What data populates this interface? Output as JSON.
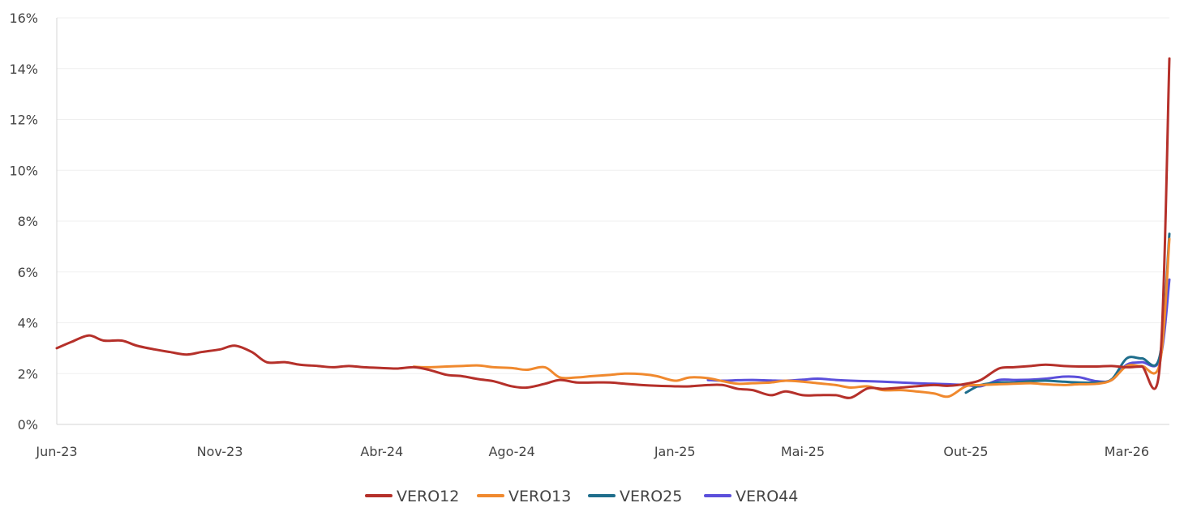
{
  "chart_data": {
    "type": "line",
    "title": "",
    "xlabel": "",
    "ylabel": "",
    "ylim": [
      0,
      16
    ],
    "grid": true,
    "legend_placement": "bottom",
    "y_ticks": [
      "0%",
      "2%",
      "4%",
      "6%",
      "8%",
      "10%",
      "12%",
      "14%",
      "16%"
    ],
    "x_ticks": [
      "Jun-23",
      "Nov-23",
      "Abr-24",
      "Ago-24",
      "Jan-25",
      "Mai-25",
      "Out-25",
      "Mar-26"
    ],
    "series": [
      {
        "name": "VERO44",
        "color": "#5b4fdb",
        "x": [
          "2025-02-01",
          "2025-02-15",
          "2025-03-01",
          "2025-03-15",
          "2025-04-01",
          "2025-04-15",
          "2025-05-01",
          "2025-05-15",
          "2025-06-01",
          "2025-06-15",
          "2025-07-01",
          "2025-07-15",
          "2025-08-01",
          "2025-08-15",
          "2025-09-01",
          "2025-09-15",
          "2025-10-01",
          "2025-10-15",
          "2025-11-01",
          "2025-11-15",
          "2025-12-01",
          "2025-12-15",
          "2026-01-01",
          "2026-01-15",
          "2026-02-01",
          "2026-02-15",
          "2026-03-01",
          "2026-03-15",
          "2026-04-01",
          "2026-04-10"
        ],
        "values": [
          1.75,
          1.72,
          1.74,
          1.75,
          1.73,
          1.72,
          1.76,
          1.8,
          1.75,
          1.72,
          1.7,
          1.68,
          1.65,
          1.62,
          1.6,
          1.58,
          1.55,
          1.5,
          1.75,
          1.75,
          1.76,
          1.8,
          1.88,
          1.86,
          1.7,
          1.75,
          2.35,
          2.45,
          2.55,
          5.7
        ]
      },
      {
        "name": "VERO25",
        "color": "#1f6e8c",
        "x": [
          "2025-10-01",
          "2025-10-15",
          "2025-11-01",
          "2025-11-15",
          "2025-12-01",
          "2025-12-15",
          "2026-01-01",
          "2026-01-15",
          "2026-02-01",
          "2026-02-15",
          "2026-03-01",
          "2026-03-15",
          "2026-04-01",
          "2026-04-10"
        ],
        "values": [
          1.25,
          1.55,
          1.65,
          1.65,
          1.7,
          1.72,
          1.68,
          1.65,
          1.65,
          1.78,
          2.6,
          2.6,
          2.7,
          7.5
        ]
      },
      {
        "name": "VERO13",
        "color": "#f0892e",
        "x": [
          "2024-05-01",
          "2024-05-15",
          "2024-06-01",
          "2024-06-15",
          "2024-07-01",
          "2024-07-15",
          "2024-08-01",
          "2024-08-15",
          "2024-09-01",
          "2024-09-15",
          "2024-10-01",
          "2024-10-15",
          "2024-11-01",
          "2024-11-15",
          "2024-12-01",
          "2024-12-15",
          "2025-01-01",
          "2025-01-15",
          "2025-02-01",
          "2025-02-15",
          "2025-03-01",
          "2025-03-15",
          "2025-04-01",
          "2025-04-15",
          "2025-05-01",
          "2025-05-15",
          "2025-06-01",
          "2025-06-15",
          "2025-07-01",
          "2025-07-15",
          "2025-08-01",
          "2025-08-15",
          "2025-09-01",
          "2025-09-15",
          "2025-10-01",
          "2025-10-15",
          "2025-11-01",
          "2025-11-15",
          "2025-12-01",
          "2025-12-15",
          "2026-01-01",
          "2026-01-15",
          "2026-02-01",
          "2026-02-15",
          "2026-03-01",
          "2026-03-15",
          "2026-04-01",
          "2026-04-10"
        ],
        "values": [
          2.27,
          2.25,
          2.28,
          2.3,
          2.32,
          2.25,
          2.22,
          2.15,
          2.25,
          1.85,
          1.85,
          1.9,
          1.95,
          2.0,
          1.98,
          1.9,
          1.72,
          1.85,
          1.82,
          1.7,
          1.6,
          1.62,
          1.65,
          1.72,
          1.68,
          1.62,
          1.55,
          1.45,
          1.5,
          1.35,
          1.35,
          1.3,
          1.22,
          1.1,
          1.5,
          1.55,
          1.58,
          1.6,
          1.62,
          1.58,
          1.55,
          1.58,
          1.6,
          1.75,
          2.3,
          2.3,
          2.4,
          7.3
        ]
      },
      {
        "name": "VERO12",
        "color": "#b5302a",
        "x": [
          "2023-06-01",
          "2023-06-15",
          "2023-07-01",
          "2023-07-15",
          "2023-08-01",
          "2023-08-15",
          "2023-09-01",
          "2023-09-15",
          "2023-10-01",
          "2023-10-15",
          "2023-11-01",
          "2023-11-15",
          "2023-12-01",
          "2023-12-15",
          "2024-01-01",
          "2024-01-15",
          "2024-02-01",
          "2024-02-15",
          "2024-03-01",
          "2024-03-15",
          "2024-04-01",
          "2024-04-15",
          "2024-05-01",
          "2024-05-15",
          "2024-06-01",
          "2024-06-15",
          "2024-07-01",
          "2024-07-15",
          "2024-08-01",
          "2024-08-15",
          "2024-09-01",
          "2024-09-15",
          "2024-10-01",
          "2024-10-15",
          "2024-11-01",
          "2024-11-15",
          "2024-12-01",
          "2024-12-15",
          "2025-01-01",
          "2025-01-15",
          "2025-02-01",
          "2025-02-15",
          "2025-03-01",
          "2025-03-15",
          "2025-04-01",
          "2025-04-15",
          "2025-05-01",
          "2025-05-15",
          "2025-06-01",
          "2025-06-15",
          "2025-07-01",
          "2025-07-15",
          "2025-08-01",
          "2025-08-15",
          "2025-09-01",
          "2025-09-15",
          "2025-10-01",
          "2025-10-15",
          "2025-11-01",
          "2025-11-15",
          "2025-12-01",
          "2025-12-15",
          "2026-01-01",
          "2026-01-15",
          "2026-02-01",
          "2026-02-15",
          "2026-03-01",
          "2026-03-15",
          "2026-04-01",
          "2026-04-10"
        ],
        "values": [
          3.0,
          3.25,
          3.5,
          3.3,
          3.3,
          3.1,
          2.95,
          2.85,
          2.75,
          2.85,
          2.95,
          3.1,
          2.85,
          2.45,
          2.45,
          2.35,
          2.3,
          2.25,
          2.3,
          2.25,
          2.22,
          2.2,
          2.25,
          2.15,
          1.95,
          1.9,
          1.78,
          1.7,
          1.5,
          1.45,
          1.6,
          1.75,
          1.65,
          1.65,
          1.65,
          1.6,
          1.55,
          1.52,
          1.5,
          1.5,
          1.55,
          1.55,
          1.4,
          1.35,
          1.15,
          1.3,
          1.15,
          1.15,
          1.15,
          1.05,
          1.42,
          1.4,
          1.45,
          1.5,
          1.55,
          1.52,
          1.6,
          1.75,
          2.2,
          2.25,
          2.3,
          2.35,
          2.3,
          2.28,
          2.28,
          2.3,
          2.25,
          2.28,
          2.3,
          14.4
        ]
      }
    ]
  }
}
